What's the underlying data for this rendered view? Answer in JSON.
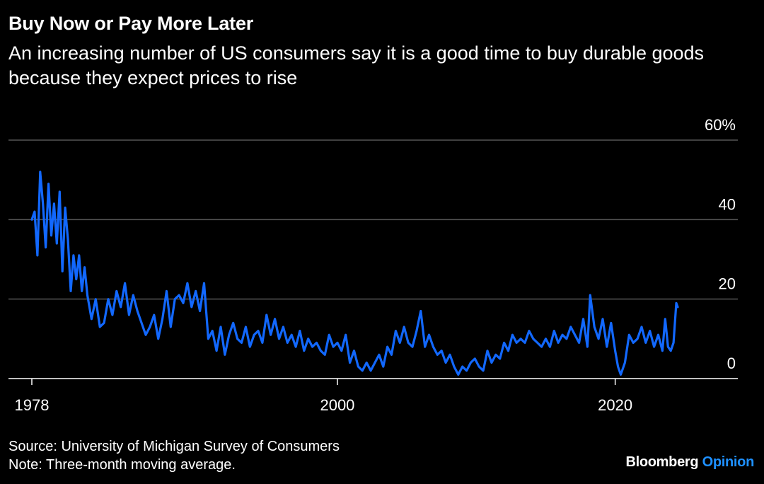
{
  "header": {
    "title": "Buy Now or Pay More Later",
    "subtitle": "An increasing number of US consumers say it is a good time to buy durable goods because they expect prices to rise"
  },
  "footer": {
    "source": "Source: University of Michigan Survey of Consumers",
    "note": "Note: Three-month moving average."
  },
  "brand": {
    "name": "Bloomberg",
    "product": "Opinion",
    "product_color": "#1e90ff"
  },
  "colors": {
    "background": "#000000",
    "line": "#1268ff",
    "grid": "#555555",
    "text": "#ffffff"
  },
  "chart_data": {
    "type": "line",
    "title": "Buy Now or Pay More Later",
    "subtitle": "An increasing number of US consumers say it is a good time to buy durable goods because they expect prices to rise",
    "xlabel": "",
    "ylabel": "",
    "xlim": [
      1978,
      2024.5
    ],
    "ylim": [
      0,
      60
    ],
    "grid": true,
    "legend": "none",
    "y_ticks": [
      {
        "value": 60,
        "label": "60%"
      },
      {
        "value": 40,
        "label": "40"
      },
      {
        "value": 20,
        "label": "20"
      },
      {
        "value": 0,
        "label": "0"
      }
    ],
    "x_ticks": [
      {
        "value": 1978,
        "label": "1978"
      },
      {
        "value": 2000,
        "label": "2000"
      },
      {
        "value": 2020,
        "label": "2020"
      }
    ],
    "series": [
      {
        "x": [
          1978.0,
          1978.2,
          1978.4,
          1978.6,
          1978.8,
          1979.0,
          1979.2,
          1979.4,
          1979.6,
          1979.8,
          1980.0,
          1980.2,
          1980.4,
          1980.6,
          1980.8,
          1981.0,
          1981.2,
          1981.4,
          1981.6,
          1981.8,
          1982.0,
          1982.3,
          1982.6,
          1982.9,
          1983.2,
          1983.5,
          1983.8,
          1984.1,
          1984.4,
          1984.7,
          1985.0,
          1985.3,
          1985.6,
          1985.9,
          1986.2,
          1986.5,
          1986.8,
          1987.1,
          1987.4,
          1987.7,
          1988.0,
          1988.3,
          1988.6,
          1988.9,
          1989.2,
          1989.5,
          1989.8,
          1990.1,
          1990.4,
          1990.7,
          1991.0,
          1991.3,
          1991.6,
          1991.9,
          1992.2,
          1992.5,
          1992.8,
          1993.1,
          1993.4,
          1993.7,
          1994.0,
          1994.3,
          1994.6,
          1994.9,
          1995.2,
          1995.5,
          1995.8,
          1996.1,
          1996.4,
          1996.7,
          1997.0,
          1997.3,
          1997.6,
          1997.9,
          1998.2,
          1998.5,
          1998.8,
          1999.1,
          1999.4,
          1999.7,
          2000.0,
          2000.3,
          2000.6,
          2000.9,
          2001.2,
          2001.5,
          2001.8,
          2002.1,
          2002.4,
          2002.7,
          2003.0,
          2003.3,
          2003.6,
          2003.9,
          2004.2,
          2004.5,
          2004.8,
          2005.1,
          2005.4,
          2005.7,
          2006.0,
          2006.3,
          2006.6,
          2006.9,
          2007.2,
          2007.5,
          2007.8,
          2008.1,
          2008.4,
          2008.7,
          2009.0,
          2009.3,
          2009.6,
          2009.9,
          2010.2,
          2010.5,
          2010.8,
          2011.1,
          2011.4,
          2011.7,
          2012.0,
          2012.3,
          2012.6,
          2012.9,
          2013.2,
          2013.5,
          2013.8,
          2014.1,
          2014.4,
          2014.7,
          2015.0,
          2015.3,
          2015.6,
          2015.9,
          2016.2,
          2016.5,
          2016.8,
          2017.1,
          2017.4,
          2017.7,
          2018.0,
          2018.2,
          2018.5,
          2018.8,
          2019.1,
          2019.4,
          2019.7,
          2020.0,
          2020.2,
          2020.4,
          2020.7,
          2021.0,
          2021.3,
          2021.6,
          2021.9,
          2022.2,
          2022.5,
          2022.8,
          2023.1,
          2023.4,
          2023.6,
          2023.8,
          2024.0,
          2024.2,
          2024.4,
          2024.5
        ],
        "values": [
          40,
          42,
          31,
          52,
          44,
          33,
          49,
          36,
          44,
          34,
          47,
          27,
          43,
          35,
          22,
          31,
          25,
          31,
          22,
          28,
          21,
          15,
          20,
          13,
          14,
          20,
          16,
          22,
          18,
          24,
          16,
          21,
          17,
          14,
          11,
          13,
          16,
          10,
          15,
          22,
          13,
          20,
          21,
          19,
          24,
          18,
          22,
          17,
          24,
          10,
          12,
          7,
          13,
          6,
          11,
          14,
          10,
          9,
          13,
          8,
          11,
          12,
          9,
          16,
          11,
          15,
          10,
          13,
          9,
          11,
          8,
          12,
          7,
          10,
          8,
          9,
          7,
          6,
          11,
          8,
          9,
          7,
          11,
          4,
          7,
          3,
          2,
          4,
          2,
          4,
          6,
          3,
          8,
          6,
          12,
          9,
          13,
          9,
          8,
          12,
          17,
          8,
          11,
          8,
          6,
          7,
          4,
          6,
          3,
          1,
          3,
          2,
          4,
          5,
          3,
          2,
          7,
          4,
          6,
          5,
          9,
          7,
          11,
          9,
          10,
          9,
          12,
          10,
          9,
          8,
          10,
          8,
          12,
          9,
          11,
          10,
          13,
          11,
          9,
          15,
          8,
          21,
          13,
          10,
          15,
          8,
          14,
          7,
          3,
          1,
          4,
          11,
          9,
          10,
          13,
          9,
          12,
          8,
          11,
          7,
          15,
          8,
          7,
          9,
          19,
          18
        ]
      }
    ]
  }
}
